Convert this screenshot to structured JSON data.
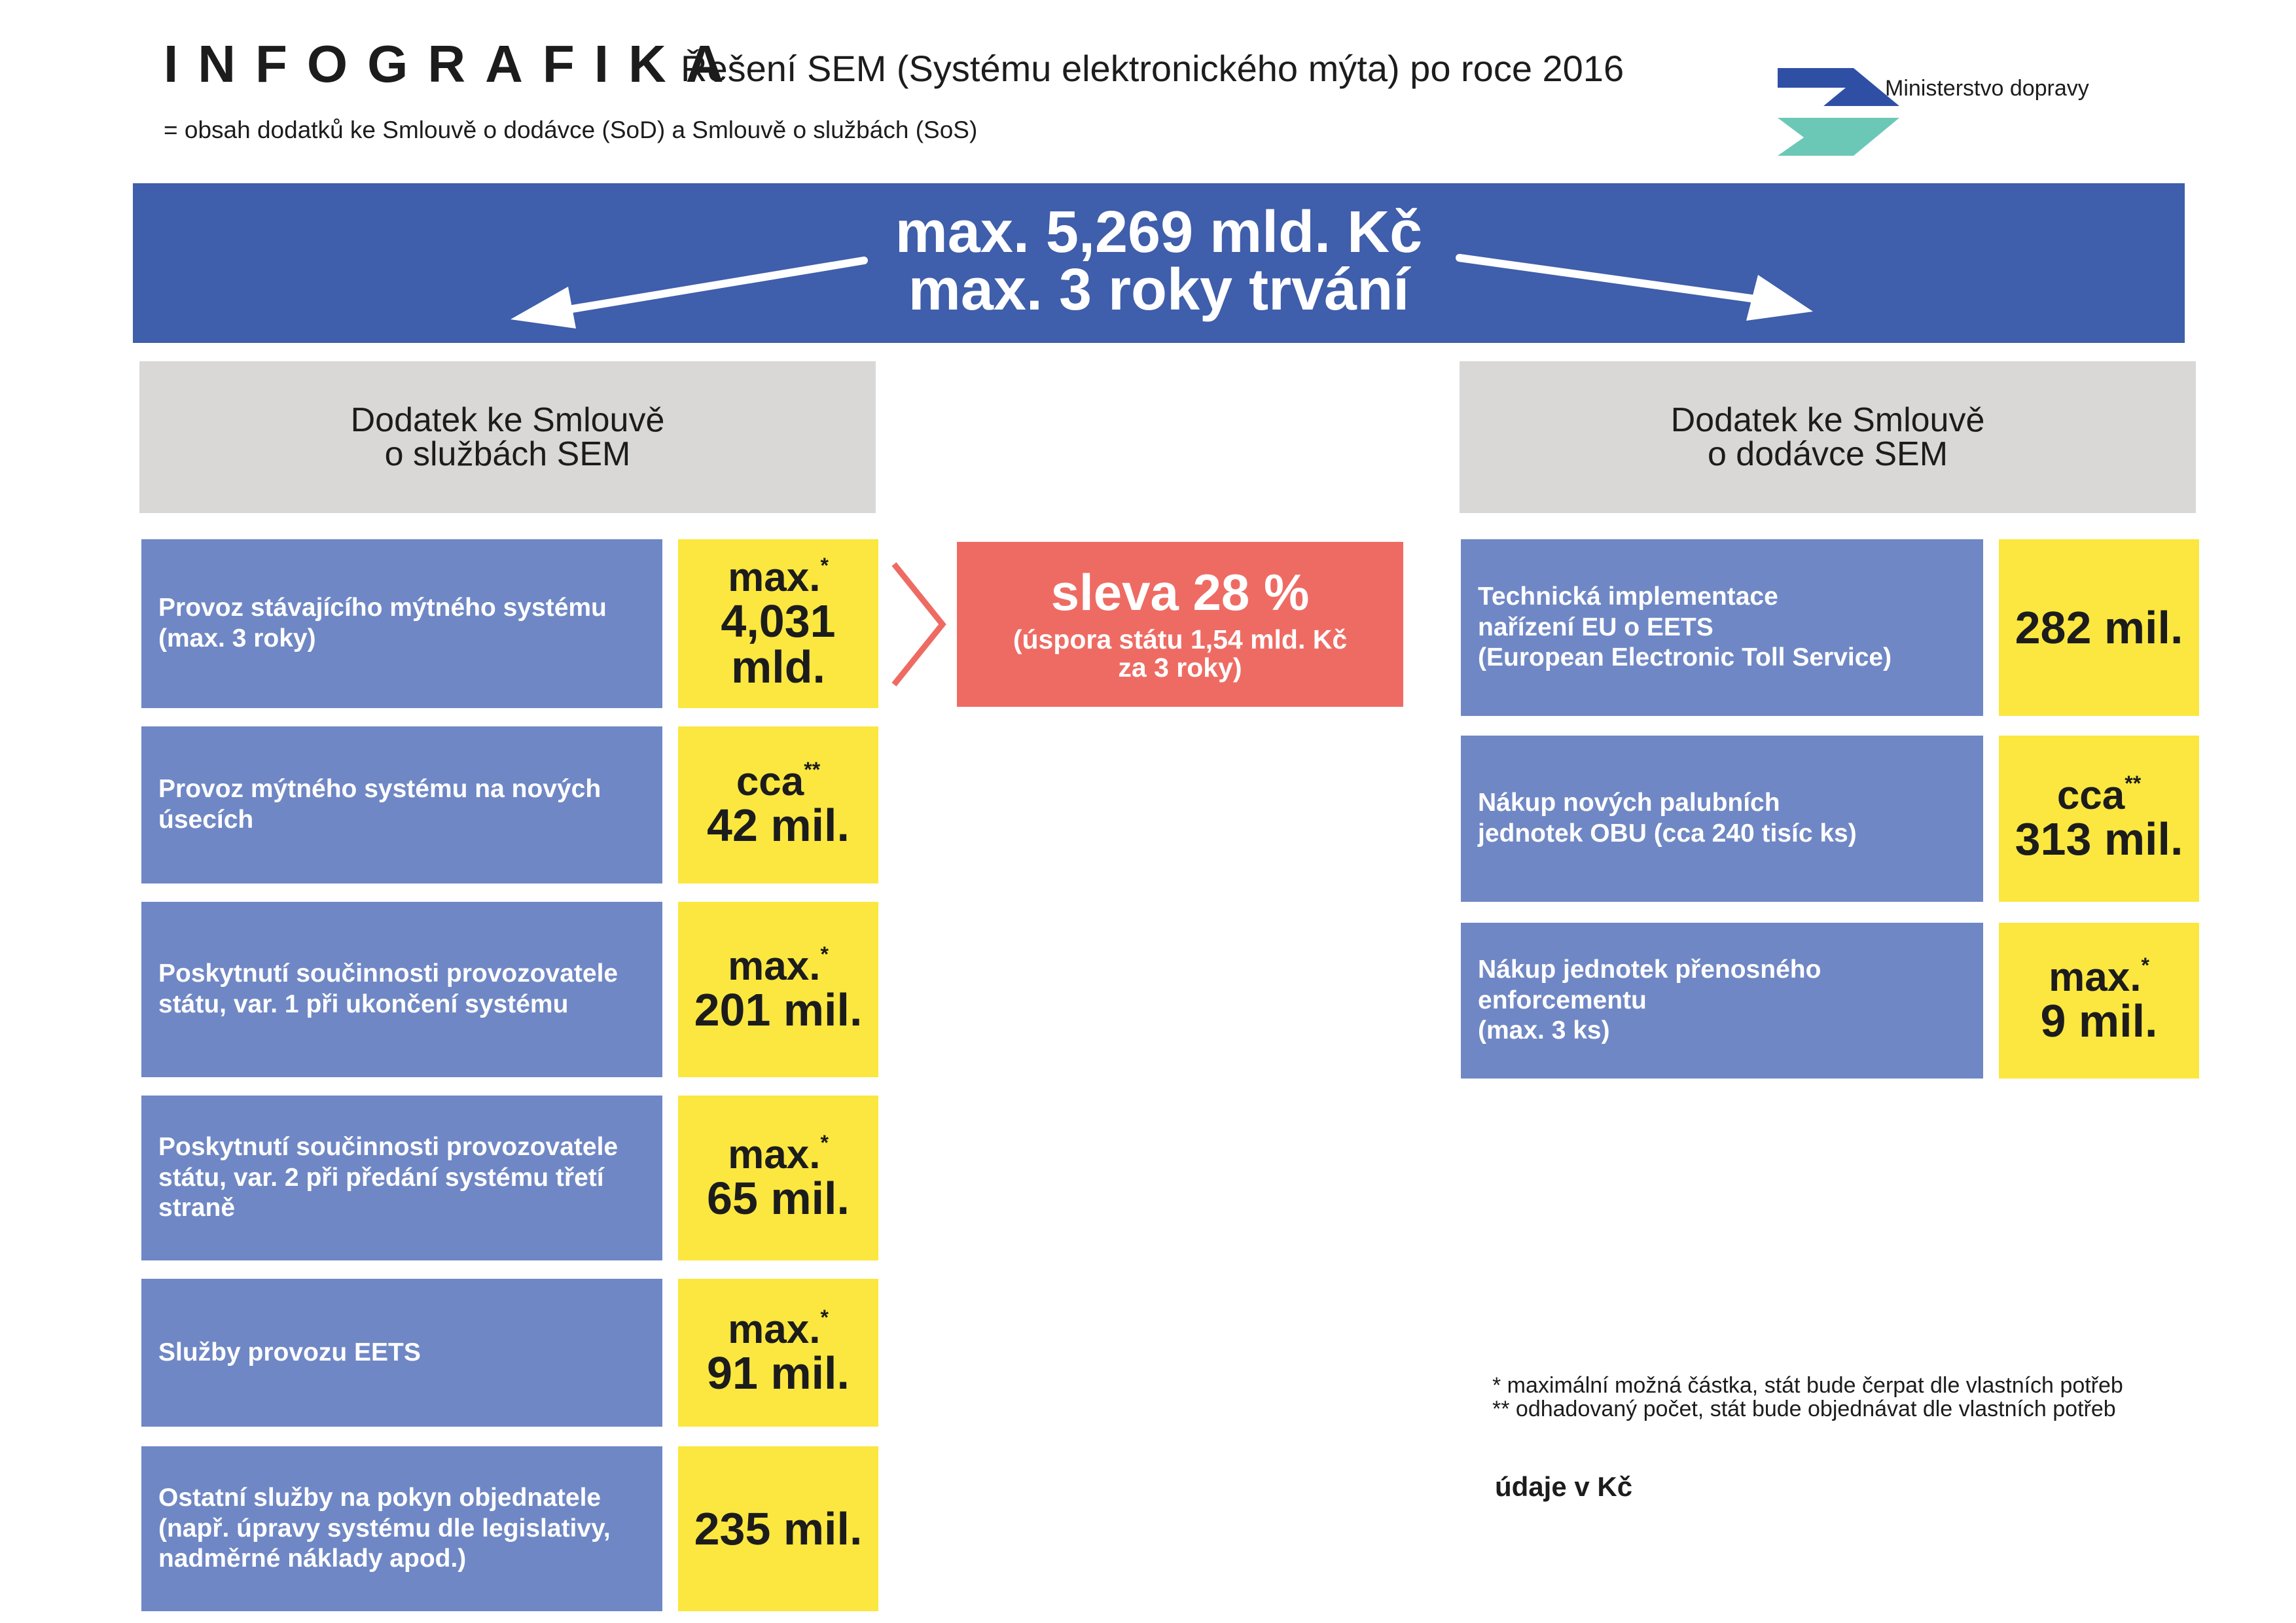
{
  "header": {
    "title": "INFOGRAFIKA",
    "title_sub": "Řešení SEM (Systému elektronického mýta) po roce 2016",
    "subtitle": "= obsah dodatků ke Smlouvě o dodávce (SoD) a Smlouvě o službách (SoS)"
  },
  "logo": {
    "text": "Ministerstvo dopravy",
    "colors": {
      "top": "#2f4fa5",
      "bottom": "#6cc8b6"
    }
  },
  "banner": {
    "line1": "max. 5,269 mld. Kč",
    "line2": "max. 3 roky trvání",
    "color": "#3f5eab"
  },
  "left_column": {
    "title_line1": "Dodatek ke Smlouvě",
    "title_line2": "o službách SEM",
    "items": [
      {
        "label_lines": [
          "Provoz stávajícího mýtného systému",
          "(max. 3 roky)"
        ],
        "value_prefix": "max.",
        "value_mark": "*",
        "value_lines": [
          "4,031",
          "mld."
        ]
      },
      {
        "label_lines": [
          "Provoz mýtného systému na nových",
          "úsecích"
        ],
        "value_prefix": "cca",
        "value_mark": "**",
        "value_lines": [
          "42 mil."
        ]
      },
      {
        "label_lines": [
          "Poskytnutí součinnosti provozovatele",
          "státu, var. 1 při ukončení systému"
        ],
        "value_prefix": "max.",
        "value_mark": "*",
        "value_lines": [
          "201 mil."
        ]
      },
      {
        "label_lines": [
          "Poskytnutí součinnosti provozovatele",
          "státu, var. 2 při předání systému třetí",
          "straně"
        ],
        "value_prefix": "max.",
        "value_mark": "*",
        "value_lines": [
          "65 mil."
        ]
      },
      {
        "label_lines": [
          "Služby provozu EETS"
        ],
        "value_prefix": "max.",
        "value_mark": "*",
        "value_lines": [
          "91 mil."
        ]
      },
      {
        "label_lines": [
          "Ostatní služby na pokyn objednatele",
          "(např. úpravy systému dle legislativy,",
          "nadměrné náklady apod.)"
        ],
        "value_prefix": "",
        "value_mark": "",
        "value_lines": [
          "235 mil."
        ]
      }
    ]
  },
  "right_column": {
    "title_line1": "Dodatek ke Smlouvě",
    "title_line2": "o dodávce SEM",
    "items": [
      {
        "label_lines": [
          "Technická implementace",
          "nařízení EU o EETS",
          "(European Electronic Toll Service)"
        ],
        "value_prefix": "",
        "value_mark": "",
        "value_lines": [
          "282 mil."
        ]
      },
      {
        "label_lines": [
          "Nákup nových palubních",
          "jednotek OBU (cca 240 tisíc ks)"
        ],
        "value_prefix": "cca",
        "value_mark": "**",
        "value_lines": [
          "313 mil."
        ]
      },
      {
        "label_lines": [
          "Nákup jednotek přenosného",
          "enforcementu",
          "(max. 3 ks)"
        ],
        "value_prefix": "max.",
        "value_mark": "*",
        "value_lines": [
          "9 mil."
        ]
      }
    ]
  },
  "discount": {
    "headline": "sleva 28 %",
    "detail_line1": "(úspora státu 1,54 mld. Kč",
    "detail_line2": "za 3 roky)",
    "color": "#ee6b63"
  },
  "notes": {
    "note1": "* maximální možná částka, stát bude čerpat dle vlastních potřeb",
    "note2": "** odhadovaný počet, stát bude objednávat dle vlastních potřeb",
    "units": "údaje v Kč"
  },
  "colors": {
    "item_bg": "#6f87c5",
    "value_bg": "#fbe73f",
    "header_bg": "#d9d8d7"
  }
}
